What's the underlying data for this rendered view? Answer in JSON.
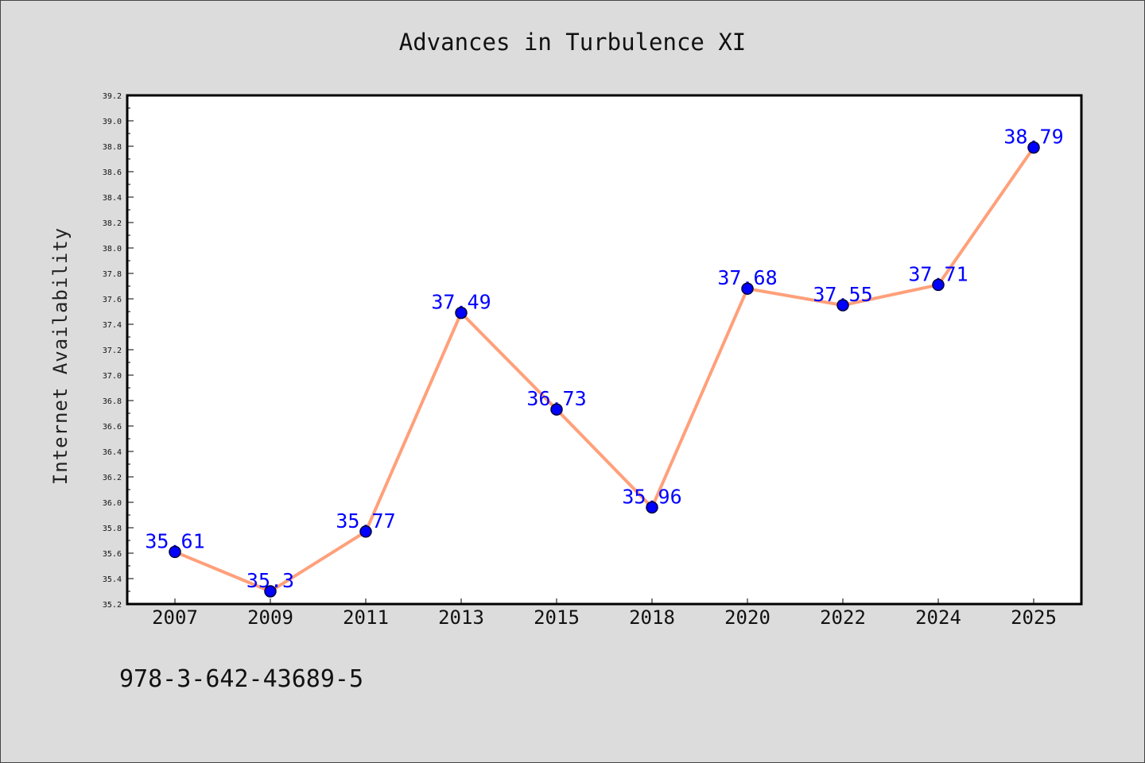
{
  "chart_data": {
    "type": "line",
    "title": "Advances in Turbulence XI",
    "xlabel": "",
    "ylabel": "Internet Availability",
    "categories": [
      "2007",
      "2009",
      "2011",
      "2013",
      "2015",
      "2018",
      "2020",
      "2022",
      "2024",
      "2025"
    ],
    "values": [
      35.61,
      35.3,
      35.77,
      37.49,
      36.73,
      35.96,
      37.68,
      37.55,
      37.71,
      38.79
    ],
    "ylim": [
      35.2,
      39.2
    ],
    "yticks": [
      "35.2",
      "35.4",
      "35.6",
      "35.8",
      "36.0",
      "36.2",
      "36.4",
      "36.6",
      "36.8",
      "37.0",
      "37.2",
      "37.4",
      "37.6",
      "37.8",
      "38.0",
      "38.2",
      "38.4",
      "38.6",
      "38.8",
      "39.0",
      "39.2"
    ],
    "grid": false,
    "data_labels": true,
    "line_color": "#FFA07A",
    "marker_color": "#0000FF",
    "label_color": "#0000FF"
  },
  "footer_text": "978-3-642-43689-5",
  "colors": {
    "figure_background": "#DCDCDC",
    "plot_background": "#FFFFFF",
    "plot_border": "#000000"
  }
}
